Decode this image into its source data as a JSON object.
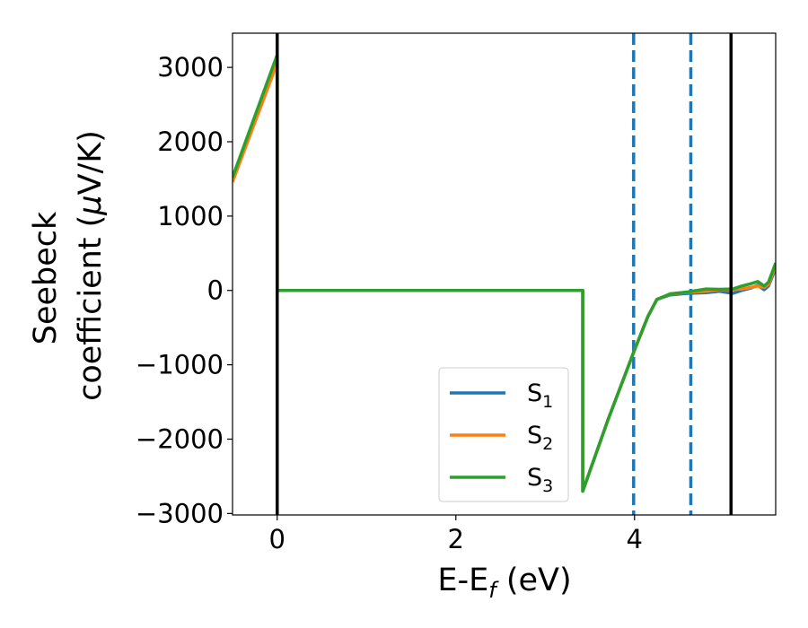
{
  "chart_data": {
    "type": "line",
    "xlabel": "E-E",
    "xlabel_sub": "f",
    "xlabel_unit": " (eV)",
    "ylabel_line1": "Seebeck",
    "ylabel_line2": "coefficient  (",
    "ylabel_mu": "μ",
    "ylabel_unit": "V/K)",
    "xlim": [
      -0.5,
      5.58
    ],
    "ylim": [
      -3020,
      3460
    ],
    "xticks": [
      0,
      2,
      4
    ],
    "xtick_labels": [
      "0",
      "2",
      "4"
    ],
    "yticks": [
      -3000,
      -2000,
      -1000,
      0,
      1000,
      2000,
      3000
    ],
    "ytick_labels": [
      "−3000",
      "−2000",
      "−1000",
      "0",
      "1000",
      "2000",
      "3000"
    ],
    "grid": false,
    "legend_position": "lower-center",
    "vertical_lines": [
      {
        "x": 0.0,
        "style": "solid",
        "color": "#000000"
      },
      {
        "x": 5.08,
        "style": "solid",
        "color": "#000000"
      },
      {
        "x": 3.99,
        "style": "dashed",
        "color": "#1f77b4"
      },
      {
        "x": 4.63,
        "style": "dashed",
        "color": "#1f77b4"
      }
    ],
    "series": [
      {
        "name": "S",
        "sub": "1",
        "color": "#1f77b4",
        "points": [
          [
            -0.5,
            1500
          ],
          [
            0.0,
            3130
          ],
          [
            0.0,
            0
          ],
          [
            3.42,
            0
          ],
          [
            3.42,
            -2700
          ],
          [
            3.7,
            -1750
          ],
          [
            4.0,
            -800
          ],
          [
            4.15,
            -350
          ],
          [
            4.25,
            -120
          ],
          [
            4.4,
            -60
          ],
          [
            4.6,
            -40
          ],
          [
            4.8,
            -30
          ],
          [
            4.95,
            -10
          ],
          [
            5.1,
            -40
          ],
          [
            5.2,
            0
          ],
          [
            5.3,
            30
          ],
          [
            5.38,
            70
          ],
          [
            5.45,
            10
          ],
          [
            5.5,
            60
          ],
          [
            5.58,
            300
          ]
        ]
      },
      {
        "name": "S",
        "sub": "2",
        "color": "#ff7f0e",
        "points": [
          [
            -0.5,
            1460
          ],
          [
            0.0,
            3060
          ],
          [
            0.0,
            0
          ],
          [
            3.42,
            0
          ],
          [
            3.42,
            -2700
          ],
          [
            3.7,
            -1750
          ],
          [
            4.0,
            -800
          ],
          [
            4.15,
            -350
          ],
          [
            4.25,
            -120
          ],
          [
            4.4,
            -50
          ],
          [
            4.6,
            -25
          ],
          [
            4.8,
            -10
          ],
          [
            4.95,
            10
          ],
          [
            5.1,
            10
          ],
          [
            5.2,
            20
          ],
          [
            5.3,
            40
          ],
          [
            5.38,
            60
          ],
          [
            5.45,
            40
          ],
          [
            5.5,
            80
          ],
          [
            5.58,
            330
          ]
        ]
      },
      {
        "name": "S",
        "sub": "3",
        "color": "#2ca02c",
        "points": [
          [
            -0.5,
            1520
          ],
          [
            0.0,
            3170
          ],
          [
            0.0,
            0
          ],
          [
            3.42,
            0
          ],
          [
            3.42,
            -2700
          ],
          [
            3.7,
            -1750
          ],
          [
            4.0,
            -800
          ],
          [
            4.15,
            -350
          ],
          [
            4.25,
            -120
          ],
          [
            4.4,
            -45
          ],
          [
            4.6,
            -20
          ],
          [
            4.8,
            20
          ],
          [
            4.95,
            15
          ],
          [
            5.1,
            20
          ],
          [
            5.2,
            60
          ],
          [
            5.3,
            90
          ],
          [
            5.38,
            120
          ],
          [
            5.45,
            60
          ],
          [
            5.5,
            110
          ],
          [
            5.58,
            370
          ]
        ]
      }
    ]
  }
}
